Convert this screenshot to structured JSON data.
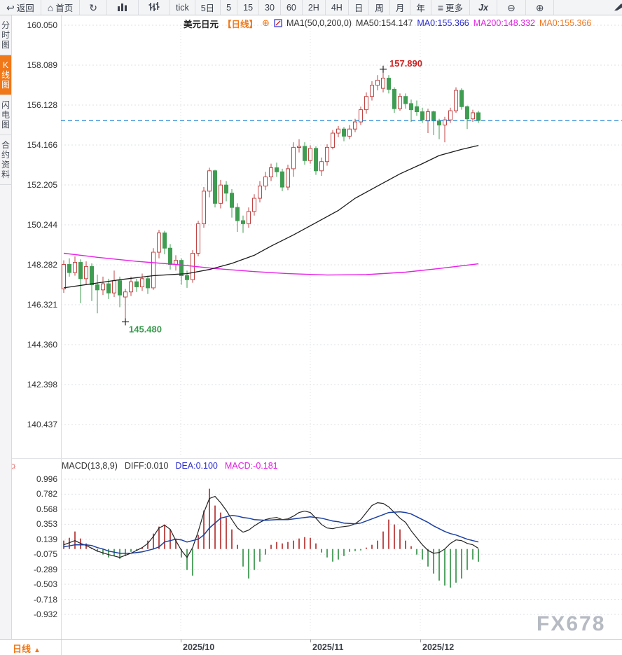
{
  "toolbar": {
    "back": {
      "icon": "↩",
      "label": "返回"
    },
    "home": {
      "icon": "⌂",
      "label": "首页"
    },
    "refresh": {
      "icon": "↻"
    },
    "bar_chart_icon": "bar-chart",
    "ohlc_icon": "ohlc-bars",
    "periods": [
      "tick",
      "5日",
      "5",
      "15",
      "30",
      "60",
      "2H",
      "4H",
      "日",
      "周",
      "月",
      "年"
    ],
    "more": {
      "icon": "≡",
      "label": "更多"
    },
    "fx": {
      "label": "Jx"
    },
    "zoom_out": {
      "icon": "⊖"
    },
    "zoom_in": {
      "icon": "⊕"
    }
  },
  "sidebar": {
    "items": [
      {
        "label": "分时图",
        "active": false
      },
      {
        "label": "K线图",
        "active": true
      },
      {
        "label": "闪电图",
        "active": false
      },
      {
        "label": "合约资料",
        "active": false
      }
    ]
  },
  "chart_header": {
    "symbol": "美元日元",
    "period_tag": "【日线】",
    "plus_icon": "⊕",
    "ma_settings": "MA1(50,0,200,0)",
    "ma50": "MA50:154.147",
    "ma0_blue": "MA0:155.366",
    "ma200": "MA200:148.332",
    "ma0_orange": "MA0:155.366"
  },
  "macd_header": {
    "settings_icon": "☼",
    "title": "MACD(13,8,9)",
    "diff": "DIFF:0.010",
    "dea": "DEA:0.100",
    "macd": "MACD:-0.181"
  },
  "bottom": {
    "period": "日线",
    "arrow": "▲"
  },
  "watermark": "FX678",
  "colors": {
    "accent_orange": "#f07818",
    "up_candle": "#c24545",
    "down_candle": "#3f9d52",
    "hist_up": "#c05050",
    "hist_down": "#55a465",
    "ma50_line": "#1a1a1a",
    "ma200_line": "#e81ee8",
    "diff_line": "#222222",
    "dea_line": "#1a3fa0",
    "current_price_line": "#1f82d2",
    "grid": "#dfe0e5",
    "axis_text": "#333333",
    "high_label": "#cc2222",
    "low_label": "#3a9a4e",
    "watermark": "#b6bac2"
  },
  "chart_data": {
    "type": "candlestick",
    "symbol": "美元日元",
    "period": "日线",
    "current_price": 155.366,
    "price_axis": {
      "labels": [
        "160.050",
        "158.089",
        "156.128",
        "154.166",
        "152.205",
        "150.244",
        "148.282",
        "146.321",
        "144.360",
        "142.398",
        "140.437"
      ]
    },
    "macd_axis": {
      "labels": [
        "0.996",
        "0.782",
        "0.568",
        "0.353",
        "0.139",
        "-0.075",
        "-0.289",
        "-0.503",
        "-0.718",
        "-0.932"
      ]
    },
    "x_axis": {
      "month_labels": [
        "2025/10",
        "2025/11",
        "2025/12"
      ]
    },
    "annotations": {
      "high": {
        "candle_index": 58,
        "price": 157.89,
        "label": "157.890"
      },
      "low": {
        "candle_index": 12,
        "price": 145.48,
        "label": "145.480"
      }
    },
    "candles": [
      [
        147.1,
        148.5,
        146.9,
        148.3
      ],
      [
        148.3,
        148.6,
        147.7,
        147.9
      ],
      [
        147.9,
        148.7,
        147.75,
        148.4
      ],
      [
        148.4,
        148.55,
        146.4,
        147.6
      ],
      [
        147.6,
        148.45,
        147.3,
        148.2
      ],
      [
        148.2,
        148.35,
        146.5,
        147.3
      ],
      [
        147.3,
        147.8,
        145.9,
        147.05
      ],
      [
        147.05,
        147.7,
        146.8,
        147.35
      ],
      [
        147.35,
        147.6,
        146.6,
        146.9
      ],
      [
        146.9,
        148.0,
        146.7,
        147.5
      ],
      [
        147.5,
        147.7,
        146.2,
        146.8
      ],
      [
        146.7,
        147.1,
        145.48,
        146.95
      ],
      [
        146.95,
        147.7,
        146.75,
        147.45
      ],
      [
        147.45,
        147.6,
        146.95,
        147.2
      ],
      [
        147.2,
        147.85,
        147.0,
        147.6
      ],
      [
        147.6,
        147.75,
        146.85,
        147.15
      ],
      [
        147.15,
        149.1,
        147.05,
        148.9
      ],
      [
        148.9,
        150.0,
        148.6,
        149.85
      ],
      [
        149.85,
        149.95,
        148.8,
        149.1
      ],
      [
        149.1,
        149.3,
        148.05,
        148.3
      ],
      [
        148.3,
        148.75,
        148.0,
        148.5
      ],
      [
        148.5,
        148.6,
        147.3,
        147.75
      ],
      [
        147.75,
        148.0,
        147.15,
        147.55
      ],
      [
        147.55,
        149.0,
        147.4,
        148.85
      ],
      [
        148.85,
        150.45,
        148.7,
        150.3
      ],
      [
        150.3,
        152.1,
        150.1,
        151.9
      ],
      [
        151.9,
        153.05,
        151.6,
        152.9
      ],
      [
        152.9,
        152.95,
        151.1,
        151.3
      ],
      [
        151.3,
        152.45,
        151.05,
        152.2
      ],
      [
        152.2,
        152.4,
        151.4,
        151.8
      ],
      [
        151.8,
        152.0,
        150.6,
        151.1
      ],
      [
        151.1,
        151.3,
        149.9,
        150.45
      ],
      [
        150.45,
        150.7,
        149.85,
        150.3
      ],
      [
        150.3,
        151.1,
        150.1,
        150.9
      ],
      [
        150.9,
        151.75,
        150.7,
        151.55
      ],
      [
        151.55,
        152.4,
        151.35,
        152.15
      ],
      [
        152.15,
        152.85,
        151.95,
        152.6
      ],
      [
        152.6,
        153.25,
        152.4,
        153.05
      ],
      [
        153.05,
        153.3,
        152.6,
        152.85
      ],
      [
        152.85,
        153.0,
        151.9,
        152.1
      ],
      [
        152.1,
        153.2,
        151.95,
        153.0
      ],
      [
        153.0,
        154.3,
        152.6,
        154.05
      ],
      [
        154.05,
        154.45,
        153.8,
        154.1
      ],
      [
        154.1,
        154.3,
        153.2,
        153.4
      ],
      [
        153.4,
        154.15,
        153.25,
        154.0
      ],
      [
        154.0,
        154.1,
        152.7,
        152.9
      ],
      [
        152.9,
        153.55,
        152.65,
        153.35
      ],
      [
        153.35,
        154.2,
        153.15,
        154.05
      ],
      [
        154.05,
        154.9,
        153.95,
        154.75
      ],
      [
        154.75,
        155.1,
        154.55,
        154.95
      ],
      [
        154.95,
        155.05,
        154.35,
        154.6
      ],
      [
        154.6,
        155.15,
        154.45,
        154.95
      ],
      [
        154.95,
        155.45,
        154.8,
        155.3
      ],
      [
        155.3,
        156.05,
        155.15,
        155.9
      ],
      [
        155.9,
        156.75,
        155.7,
        156.55
      ],
      [
        156.55,
        157.3,
        156.35,
        157.1
      ],
      [
        157.1,
        157.6,
        156.85,
        157.35
      ],
      [
        156.95,
        157.89,
        156.75,
        157.45
      ],
      [
        157.45,
        157.6,
        156.7,
        156.9
      ],
      [
        156.9,
        157.0,
        155.75,
        155.95
      ],
      [
        155.95,
        156.7,
        155.85,
        156.55
      ],
      [
        156.55,
        156.7,
        155.95,
        156.2
      ],
      [
        156.2,
        156.4,
        155.3,
        155.9
      ],
      [
        156.05,
        156.35,
        155.6,
        155.8
      ],
      [
        155.8,
        156.0,
        155.25,
        155.4
      ],
      [
        155.35,
        155.95,
        154.75,
        155.8
      ],
      [
        155.8,
        155.85,
        154.65,
        155.35
      ],
      [
        155.35,
        155.45,
        154.45,
        155.15
      ],
      [
        155.15,
        155.55,
        154.3,
        155.4
      ],
      [
        155.4,
        156.0,
        155.25,
        155.85
      ],
      [
        155.85,
        157.0,
        155.75,
        156.85
      ],
      [
        156.85,
        156.95,
        155.9,
        156.05
      ],
      [
        156.05,
        156.1,
        154.95,
        155.45
      ],
      [
        155.45,
        155.9,
        155.3,
        155.75
      ],
      [
        155.75,
        155.85,
        155.25,
        155.37
      ]
    ],
    "ma50": [
      [
        0,
        147.15
      ],
      [
        5,
        147.35
      ],
      [
        10,
        147.55
      ],
      [
        16,
        147.75
      ],
      [
        22,
        147.85
      ],
      [
        26,
        148.05
      ],
      [
        30,
        148.35
      ],
      [
        34,
        148.75
      ],
      [
        37,
        149.2
      ],
      [
        41,
        149.75
      ],
      [
        45,
        150.35
      ],
      [
        49,
        150.95
      ],
      [
        52,
        151.55
      ],
      [
        56,
        152.15
      ],
      [
        60,
        152.75
      ],
      [
        64,
        153.25
      ],
      [
        67,
        153.65
      ],
      [
        71,
        153.95
      ],
      [
        74,
        154.147
      ]
    ],
    "ma200": [
      [
        0,
        148.85
      ],
      [
        6,
        148.65
      ],
      [
        13,
        148.45
      ],
      [
        20,
        148.3
      ],
      [
        27,
        148.1
      ],
      [
        34,
        147.95
      ],
      [
        40,
        147.85
      ],
      [
        47,
        147.78
      ],
      [
        54,
        147.8
      ],
      [
        61,
        147.92
      ],
      [
        67,
        148.1
      ],
      [
        74,
        148.332
      ]
    ],
    "macd": {
      "diff": [
        0.06,
        0.09,
        0.12,
        0.08,
        0.05,
        0.01,
        -0.03,
        -0.055,
        -0.08,
        -0.1,
        -0.12,
        -0.09,
        -0.06,
        -0.02,
        0.02,
        0.08,
        0.18,
        0.3,
        0.34,
        0.28,
        0.12,
        -0.02,
        -0.12,
        0.02,
        0.25,
        0.52,
        0.72,
        0.75,
        0.66,
        0.55,
        0.42,
        0.3,
        0.24,
        0.27,
        0.33,
        0.38,
        0.42,
        0.44,
        0.45,
        0.42,
        0.43,
        0.47,
        0.52,
        0.54,
        0.52,
        0.44,
        0.35,
        0.3,
        0.29,
        0.31,
        0.32,
        0.33,
        0.36,
        0.42,
        0.52,
        0.62,
        0.66,
        0.65,
        0.6,
        0.52,
        0.44,
        0.38,
        0.26,
        0.16,
        0.06,
        -0.02,
        -0.06,
        -0.05,
        0.0,
        0.08,
        0.13,
        0.12,
        0.08,
        0.06,
        0.01
      ],
      "dea": [
        0.03,
        0.045,
        0.06,
        0.06,
        0.06,
        0.05,
        0.02,
        0.0,
        -0.03,
        -0.045,
        -0.06,
        -0.06,
        -0.06,
        -0.05,
        -0.04,
        -0.02,
        0.0,
        0.03,
        0.1,
        0.12,
        0.14,
        0.13,
        0.1,
        0.12,
        0.14,
        0.2,
        0.3,
        0.37,
        0.44,
        0.46,
        0.48,
        0.47,
        0.45,
        0.44,
        0.42,
        0.415,
        0.41,
        0.415,
        0.42,
        0.42,
        0.42,
        0.43,
        0.44,
        0.45,
        0.46,
        0.45,
        0.44,
        0.42,
        0.4,
        0.39,
        0.37,
        0.365,
        0.36,
        0.37,
        0.4,
        0.43,
        0.46,
        0.49,
        0.52,
        0.525,
        0.53,
        0.52,
        0.5,
        0.46,
        0.42,
        0.38,
        0.33,
        0.29,
        0.25,
        0.22,
        0.2,
        0.17,
        0.14,
        0.12,
        0.1
      ],
      "hist": [
        0.12,
        0.16,
        0.25,
        0.15,
        0.08,
        0.02,
        -0.04,
        -0.08,
        -0.12,
        -0.1,
        -0.14,
        -0.1,
        -0.04,
        -0.02,
        0.02,
        0.12,
        0.22,
        0.32,
        0.35,
        0.28,
        0.15,
        -0.12,
        -0.3,
        -0.38,
        0.2,
        0.55,
        0.86,
        0.62,
        0.52,
        0.45,
        0.28,
        0.06,
        -0.25,
        -0.42,
        -0.3,
        -0.18,
        -0.08,
        0.06,
        0.1,
        0.08,
        0.1,
        0.12,
        0.15,
        0.17,
        0.16,
        0.08,
        -0.05,
        -0.12,
        -0.18,
        -0.15,
        -0.1,
        -0.04,
        -0.03,
        -0.02,
        0.02,
        0.06,
        0.12,
        0.25,
        0.42,
        0.35,
        0.28,
        0.12,
        0.04,
        -0.08,
        -0.15,
        -0.25,
        -0.35,
        -0.45,
        -0.52,
        -0.55,
        -0.48,
        -0.42,
        -0.3,
        -0.15,
        -0.181
      ]
    }
  }
}
